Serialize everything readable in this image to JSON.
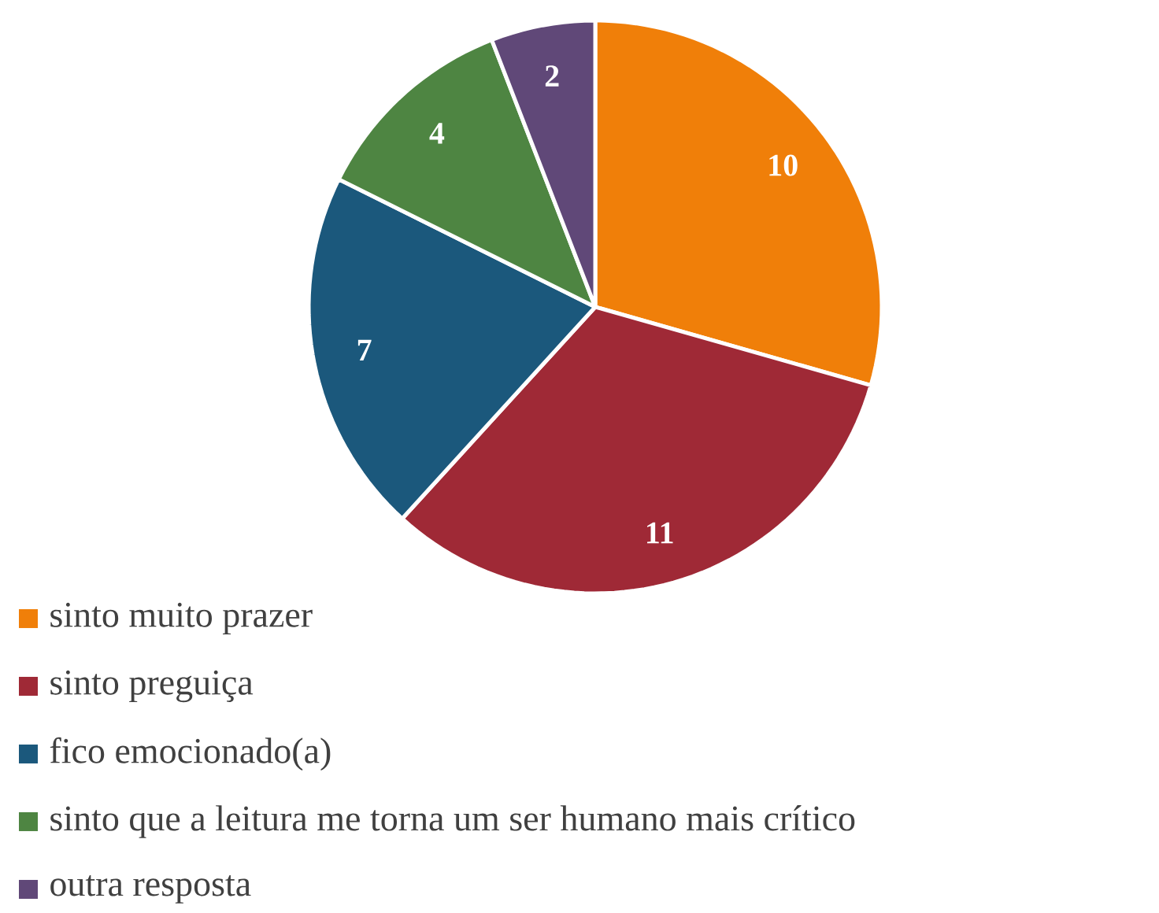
{
  "chart_data": {
    "type": "pie",
    "categories": [
      "sinto muito prazer",
      "sinto preguiça",
      "fico emocionado(a)",
      "sinto que a leitura me torna um ser humano mais crítico",
      "outra resposta"
    ],
    "values": [
      10,
      11,
      7,
      4,
      2
    ],
    "colors": [
      "#f07f09",
      "#9f2936",
      "#1b587c",
      "#4e8542",
      "#604878"
    ],
    "data_labels": true,
    "legend": "bottom"
  }
}
